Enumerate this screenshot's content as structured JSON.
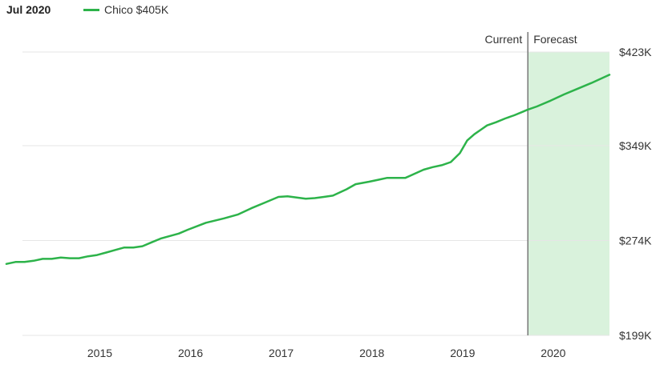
{
  "header": {
    "date": "Jul 2020",
    "legend_label": "Chico $405K"
  },
  "colors": {
    "line": "#2db34a",
    "forecast_fill": "#d9f2dc",
    "grid": "#e6e6e6",
    "divider": "#777777"
  },
  "chart_data": {
    "type": "line",
    "title": "",
    "xlabel": "",
    "ylabel": "",
    "xlim": [
      2014.0,
      2020.65
    ],
    "ylim": [
      199000,
      423000
    ],
    "y_ticks": [
      {
        "value": 423000,
        "label": "$423K"
      },
      {
        "value": 349000,
        "label": "$349K"
      },
      {
        "value": 274000,
        "label": "$274K"
      },
      {
        "value": 199000,
        "label": "$199K"
      }
    ],
    "x_ticks": [
      {
        "value": 2015,
        "label": "2015"
      },
      {
        "value": 2016,
        "label": "2016"
      },
      {
        "value": 2017,
        "label": "2017"
      },
      {
        "value": 2018,
        "label": "2018"
      },
      {
        "value": 2019,
        "label": "2019"
      },
      {
        "value": 2020,
        "label": "2020"
      }
    ],
    "forecast": {
      "start": 2019.75,
      "current_label": "Current",
      "forecast_label": "Forecast"
    },
    "series": [
      {
        "name": "Chico",
        "x": [
          2014.0,
          2014.1,
          2014.2,
          2014.3,
          2014.4,
          2014.5,
          2014.6,
          2014.7,
          2014.8,
          2014.9,
          2015.0,
          2015.1,
          2015.2,
          2015.3,
          2015.4,
          2015.5,
          2015.6,
          2015.7,
          2015.8,
          2015.9,
          2016.0,
          2016.2,
          2016.4,
          2016.55,
          2016.7,
          2016.85,
          2017.0,
          2017.1,
          2017.2,
          2017.3,
          2017.4,
          2017.5,
          2017.6,
          2017.75,
          2017.85,
          2018.0,
          2018.1,
          2018.2,
          2018.3,
          2018.4,
          2018.6,
          2018.7,
          2018.8,
          2018.9,
          2019.0,
          2019.08,
          2019.16,
          2019.24,
          2019.3,
          2019.4,
          2019.5,
          2019.6,
          2019.7,
          2019.75,
          2019.85,
          2020.0,
          2020.15,
          2020.3,
          2020.45,
          2020.65
        ],
        "y": [
          255500,
          257000,
          257000,
          258000,
          259500,
          259500,
          260500,
          260000,
          260000,
          261500,
          262500,
          264500,
          266500,
          268500,
          268500,
          269500,
          272500,
          275500,
          277500,
          279500,
          282500,
          288000,
          291500,
          294500,
          299500,
          304000,
          308500,
          309000,
          308000,
          307000,
          307500,
          308500,
          309500,
          314500,
          318500,
          320500,
          322000,
          323500,
          323500,
          323500,
          330000,
          332000,
          333500,
          336000,
          343000,
          353000,
          358000,
          362000,
          365000,
          367500,
          370500,
          373000,
          376000,
          377500,
          380000,
          384500,
          389500,
          394000,
          398500,
          405000
        ]
      }
    ]
  }
}
